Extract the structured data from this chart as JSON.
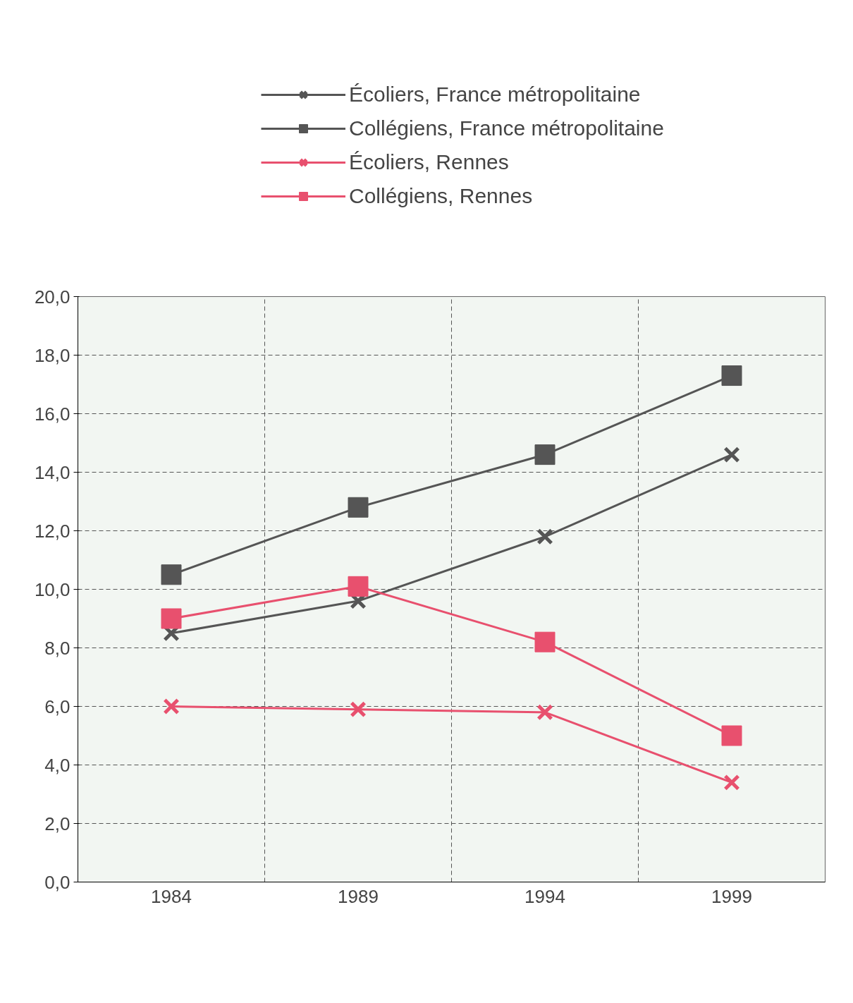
{
  "chart_data": {
    "type": "line",
    "categories": [
      "1984",
      "1989",
      "1994",
      "1999"
    ],
    "series": [
      {
        "name": "Écoliers, France métropolitaine",
        "color": "#555555",
        "marker": "cross",
        "values": [
          8.5,
          9.6,
          11.8,
          14.6
        ]
      },
      {
        "name": "Collégiens, France métropolitaine",
        "color": "#555555",
        "marker": "square",
        "values": [
          10.5,
          12.8,
          14.6,
          17.3
        ]
      },
      {
        "name": "Écoliers, Rennes",
        "color": "#e8506e",
        "marker": "cross",
        "values": [
          6.0,
          5.9,
          5.8,
          3.4
        ]
      },
      {
        "name": "Collégiens, Rennes",
        "color": "#e8506e",
        "marker": "square",
        "values": [
          9.0,
          10.1,
          8.2,
          5.0
        ]
      }
    ],
    "ylim": [
      0,
      20
    ],
    "yticks": [
      {
        "value": 0,
        "label": "0,0"
      },
      {
        "value": 2,
        "label": "2,0"
      },
      {
        "value": 4,
        "label": "4,0"
      },
      {
        "value": 6,
        "label": "6,0"
      },
      {
        "value": 8,
        "label": "8,0"
      },
      {
        "value": 10,
        "label": "10,0"
      },
      {
        "value": 12,
        "label": "12,0"
      },
      {
        "value": 14,
        "label": "14,0"
      },
      {
        "value": 16,
        "label": "16,0"
      },
      {
        "value": 18,
        "label": "18,0"
      },
      {
        "value": 20,
        "label": "20,0"
      }
    ],
    "grid": true,
    "legend": "top",
    "line_style": "solid"
  }
}
